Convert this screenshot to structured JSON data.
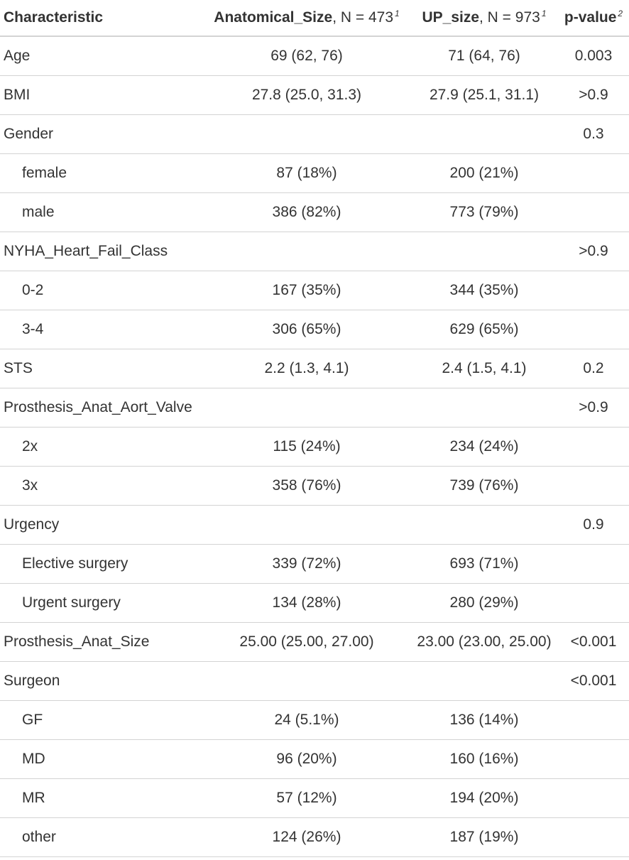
{
  "header": {
    "characteristic": "Characteristic",
    "col1_name": "Anatomical_Size",
    "col1_n": ", N = 473",
    "col1_fn": "1",
    "col2_name": "UP_size",
    "col2_n": ", N = 973",
    "col2_fn": "1",
    "col3_name": "p-value",
    "col3_fn": "2"
  },
  "rows": [
    {
      "label": "Age",
      "a": "69 (62, 76)",
      "b": "71 (64, 76)",
      "p": "0.003"
    },
    {
      "label": "BMI",
      "a": "27.8 (25.0, 31.3)",
      "b": "27.9 (25.1, 31.1)",
      "p": ">0.9"
    },
    {
      "label": "Gender",
      "a": "",
      "b": "",
      "p": "0.3"
    },
    {
      "label": "female",
      "a": "87 (18%)",
      "b": "200 (21%)",
      "p": ""
    },
    {
      "label": "male",
      "a": "386 (82%)",
      "b": "773 (79%)",
      "p": ""
    },
    {
      "label": "NYHA_Heart_Fail_Class",
      "a": "",
      "b": "",
      "p": ">0.9"
    },
    {
      "label": "0-2",
      "a": "167 (35%)",
      "b": "344 (35%)",
      "p": ""
    },
    {
      "label": "3-4",
      "a": "306 (65%)",
      "b": "629 (65%)",
      "p": ""
    },
    {
      "label": "STS",
      "a": "2.2 (1.3, 4.1)",
      "b": "2.4 (1.5, 4.1)",
      "p": "0.2"
    },
    {
      "label": "Prosthesis_Anat_Aort_Valve",
      "a": "",
      "b": "",
      "p": ">0.9"
    },
    {
      "label": "2x",
      "a": "115 (24%)",
      "b": "234 (24%)",
      "p": ""
    },
    {
      "label": "3x",
      "a": "358 (76%)",
      "b": "739 (76%)",
      "p": ""
    },
    {
      "label": "Urgency",
      "a": "",
      "b": "",
      "p": "0.9"
    },
    {
      "label": "Elective surgery",
      "a": "339 (72%)",
      "b": "693 (71%)",
      "p": ""
    },
    {
      "label": "Urgent surgery",
      "a": "134 (28%)",
      "b": "280 (29%)",
      "p": ""
    },
    {
      "label": "Prosthesis_Anat_Size",
      "a": "25.00 (25.00, 27.00)",
      "b": "23.00 (23.00, 25.00)",
      "p": "<0.001"
    },
    {
      "label": "Surgeon",
      "a": "",
      "b": "",
      "p": "<0.001"
    },
    {
      "label": "GF",
      "a": "24 (5.1%)",
      "b": "136 (14%)",
      "p": ""
    },
    {
      "label": "MD",
      "a": "96 (20%)",
      "b": "160 (16%)",
      "p": ""
    },
    {
      "label": "MR",
      "a": "57 (12%)",
      "b": "194 (20%)",
      "p": ""
    },
    {
      "label": "other",
      "a": "124 (26%)",
      "b": "187 (19%)",
      "p": ""
    }
  ]
}
